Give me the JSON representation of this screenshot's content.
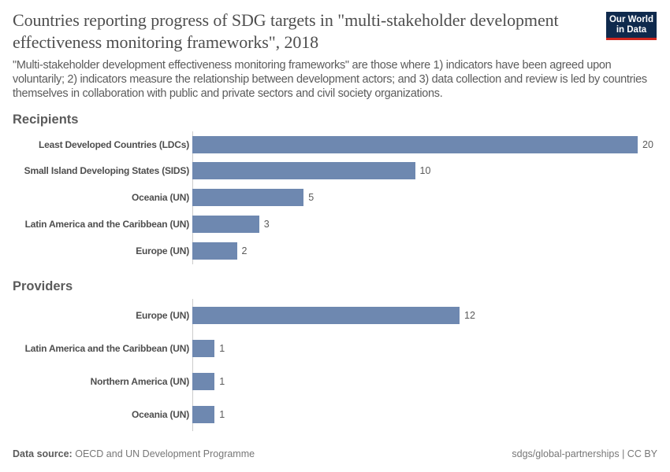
{
  "header": {
    "title": "Countries reporting progress of SDG targets in \"multi-stakeholder development effectiveness monitoring frameworks\", 2018",
    "subtitle": "\"Multi-stakeholder development effectiveness monitoring frameworks\" are those where 1) indicators have been agreed upon voluntarily; 2) indicators measure the relationship between development actors; and 3) data collection and review is led by countries themselves in collaboration with public and private sectors and civil society organizations.",
    "logo": "Our World in Data"
  },
  "chart_data": {
    "type": "bar",
    "orientation": "horizontal",
    "color": "#6e88b0",
    "xlim": [
      0,
      20
    ],
    "groups": [
      {
        "name": "Recipients",
        "categories": [
          "Least Developed Countries (LDCs)",
          "Small Island Developing States (SIDS)",
          "Oceania (UN)",
          "Latin America and the Caribbean (UN)",
          "Europe (UN)"
        ],
        "values": [
          20,
          10,
          5,
          3,
          2
        ]
      },
      {
        "name": "Providers",
        "categories": [
          "Europe (UN)",
          "Latin America and the Caribbean (UN)",
          "Northern America (UN)",
          "Oceania (UN)"
        ],
        "values": [
          12,
          1,
          1,
          1
        ]
      }
    ]
  },
  "footer": {
    "source_label": "Data source:",
    "source": "OECD and UN Development Programme",
    "right": "sdgs/global-partnerships | CC BY"
  }
}
